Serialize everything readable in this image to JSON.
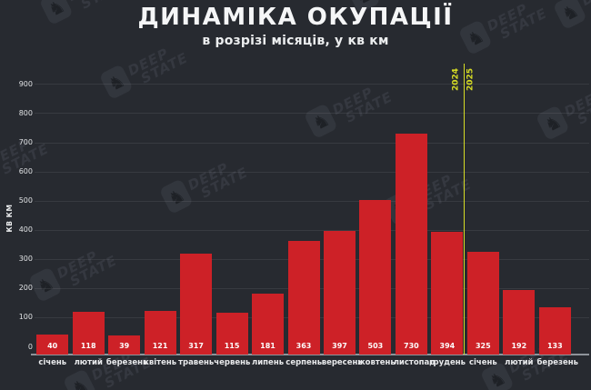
{
  "title": "ДИНАМІКА ОКУПАЦІЇ",
  "subtitle": "в розрізі місяців, у кв км",
  "chart_data": {
    "type": "bar",
    "title": "ДИНАМІКА ОКУПАЦІЇ",
    "subtitle": "в розрізі місяців, у кв км",
    "categories": [
      "січень",
      "лютий",
      "березень",
      "квітень",
      "травень",
      "червень",
      "липень",
      "серпень",
      "вересень",
      "жовтень",
      "листопад",
      "грудень",
      "січень",
      "лютий",
      "березень"
    ],
    "values": [
      40,
      118,
      39,
      121,
      317,
      115,
      181,
      363,
      397,
      503,
      730,
      394,
      325,
      192,
      133
    ],
    "value_labels_shown": true,
    "xlabel": "",
    "ylabel": "КВ КМ",
    "ylim": [
      0,
      900
    ],
    "yticks": [
      0,
      100,
      200,
      300,
      400,
      500,
      600,
      700,
      800,
      900
    ],
    "grid": true,
    "legend": "none",
    "bar_color": "#cd2127",
    "background_color": "#272a30",
    "year_separator": {
      "after_index": 11,
      "left_label": "2024",
      "right_label": "2025",
      "color": "#d6dc25"
    }
  },
  "watermark": {
    "line1": "DEEP",
    "line2": "STATE",
    "icon": "knight-icon",
    "knight_glyph": "♞"
  }
}
